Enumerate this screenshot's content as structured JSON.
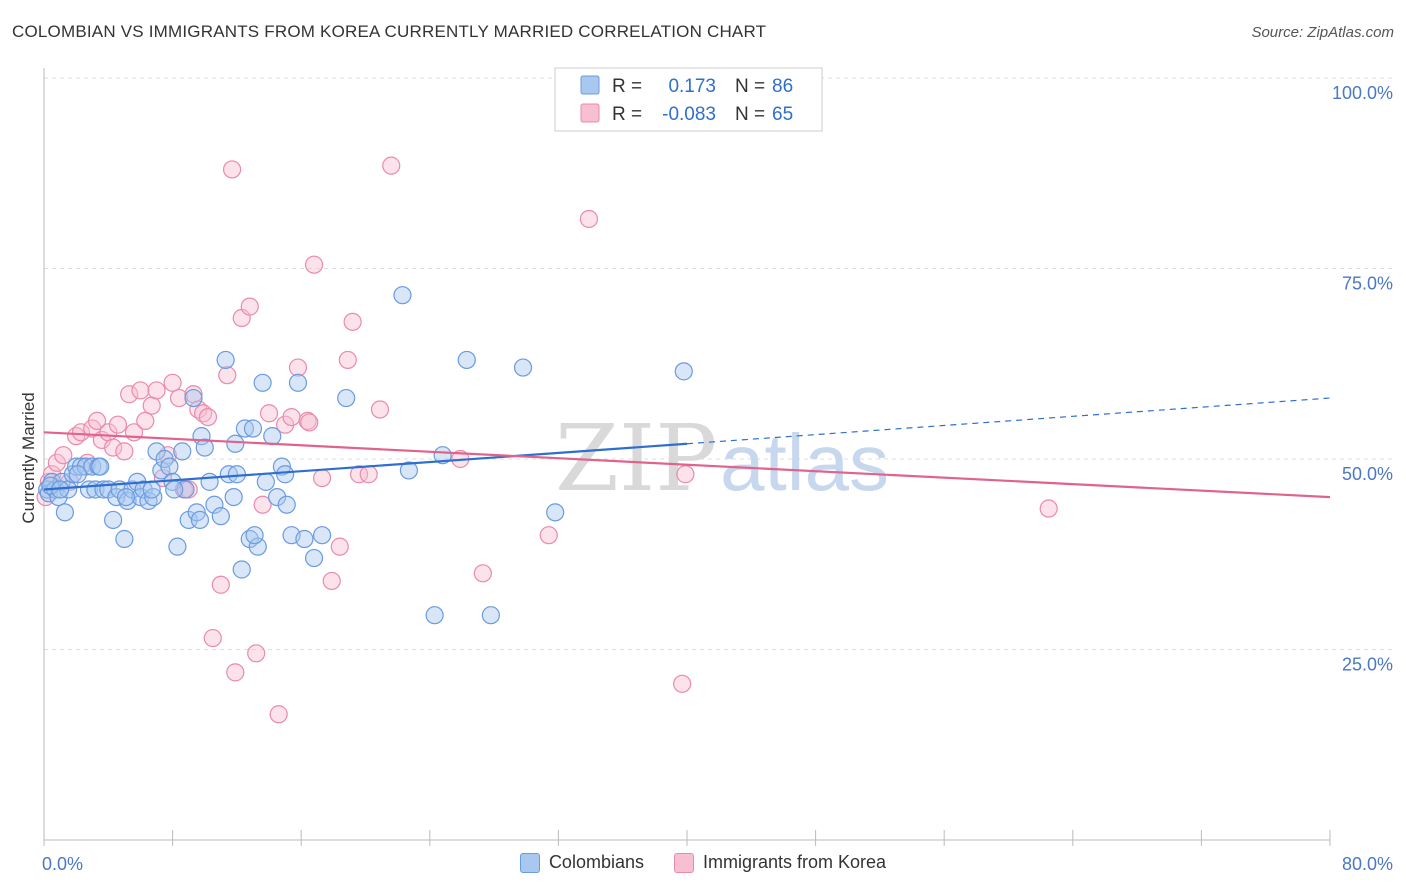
{
  "title": "COLOMBIAN VS IMMIGRANTS FROM KOREA CURRENTLY MARRIED CORRELATION CHART",
  "source": "Source: ZipAtlas.com",
  "watermark": {
    "zip": "ZIP",
    "atlas": "atlas"
  },
  "colors": {
    "blue_fill": "#a9c8f0",
    "blue_stroke": "#6a9be0",
    "blue_line": "#2e6fce",
    "pink_fill": "#f7bfd2",
    "pink_stroke": "#ea8aac",
    "pink_line": "#e0638c",
    "axis_label": "#4a78c4",
    "grid": "#dddddd"
  },
  "legend_box": {
    "rows": [
      {
        "r_label": "R =",
        "r_value": "0.173",
        "n_label": "N =",
        "n_value": "86",
        "series": "blue"
      },
      {
        "r_label": "R =",
        "r_value": "-0.083",
        "n_label": "N =",
        "n_value": "65",
        "series": "pink"
      }
    ]
  },
  "legend_bottom": [
    {
      "label": "Colombians",
      "series": "blue"
    },
    {
      "label": "Immigrants from Korea",
      "series": "pink"
    }
  ],
  "chart_data": {
    "type": "scatter",
    "title": "COLOMBIAN VS IMMIGRANTS FROM KOREA CURRENTLY MARRIED CORRELATION CHART",
    "xlabel": "",
    "ylabel": "Currently Married",
    "xlim": [
      0,
      80
    ],
    "ylim": [
      0,
      100
    ],
    "x_tick_labels": [
      "0.0%",
      "80.0%"
    ],
    "y_ticks": [
      25,
      50,
      75,
      100
    ],
    "y_tick_labels": [
      "25.0%",
      "50.0%",
      "75.0%",
      "100.0%"
    ],
    "grid": "horizontal dashed",
    "legend": "top-center",
    "series": [
      {
        "name": "Colombians",
        "color": "blue",
        "trend": {
          "x0": 0,
          "y0": 46,
          "x1": 40,
          "y1": 52,
          "dashed_to_x": 80,
          "dashed_to_y": 58
        },
        "points": [
          [
            0.2,
            46
          ],
          [
            0.3,
            45.5
          ],
          [
            0.5,
            47
          ],
          [
            0.7,
            46
          ],
          [
            0.9,
            45
          ],
          [
            1.1,
            47
          ],
          [
            1.3,
            43
          ],
          [
            1.5,
            46
          ],
          [
            1.8,
            48
          ],
          [
            2.0,
            49
          ],
          [
            2.3,
            49
          ],
          [
            2.6,
            49
          ],
          [
            2.8,
            46
          ],
          [
            3.0,
            49
          ],
          [
            3.2,
            46
          ],
          [
            3.4,
            49
          ],
          [
            3.7,
            46
          ],
          [
            4.0,
            46
          ],
          [
            4.3,
            42
          ],
          [
            4.5,
            45
          ],
          [
            4.7,
            46
          ],
          [
            5.0,
            39.5
          ],
          [
            5.2,
            44.5
          ],
          [
            5.5,
            46
          ],
          [
            5.8,
            47
          ],
          [
            6.0,
            45
          ],
          [
            6.2,
            46
          ],
          [
            6.5,
            44.5
          ],
          [
            6.8,
            45
          ],
          [
            7.0,
            51
          ],
          [
            7.3,
            48.5
          ],
          [
            7.5,
            50
          ],
          [
            7.8,
            49
          ],
          [
            8.0,
            47
          ],
          [
            8.3,
            38.5
          ],
          [
            8.6,
            51
          ],
          [
            8.8,
            46
          ],
          [
            9.0,
            42
          ],
          [
            9.3,
            58
          ],
          [
            9.5,
            43
          ],
          [
            9.8,
            53
          ],
          [
            10.0,
            51.5
          ],
          [
            10.3,
            47
          ],
          [
            10.6,
            44
          ],
          [
            11.0,
            42.5
          ],
          [
            11.3,
            63
          ],
          [
            11.5,
            48
          ],
          [
            11.8,
            45
          ],
          [
            12.0,
            48
          ],
          [
            12.3,
            35.5
          ],
          [
            12.5,
            54
          ],
          [
            12.8,
            39.5
          ],
          [
            13.0,
            54
          ],
          [
            13.3,
            38.5
          ],
          [
            13.6,
            60
          ],
          [
            13.8,
            47
          ],
          [
            14.2,
            53
          ],
          [
            14.5,
            45
          ],
          [
            14.8,
            49
          ],
          [
            15.1,
            44
          ],
          [
            15.4,
            40
          ],
          [
            15.8,
            60
          ],
          [
            16.2,
            39.5
          ],
          [
            16.8,
            37
          ],
          [
            17.3,
            40
          ],
          [
            18.8,
            58
          ],
          [
            22.3,
            71.5
          ],
          [
            22.7,
            48.5
          ],
          [
            24.3,
            29.5
          ],
          [
            24.8,
            50.5
          ],
          [
            26.3,
            63
          ],
          [
            27.8,
            29.5
          ],
          [
            29.8,
            62
          ],
          [
            31.8,
            43
          ],
          [
            39.8,
            61.5
          ],
          [
            0.4,
            46.5
          ],
          [
            1.0,
            46
          ],
          [
            2.1,
            48
          ],
          [
            3.5,
            49
          ],
          [
            5.1,
            45
          ],
          [
            6.7,
            46
          ],
          [
            8.1,
            46
          ],
          [
            9.7,
            42
          ],
          [
            11.9,
            52
          ],
          [
            13.1,
            40
          ],
          [
            15.0,
            48
          ]
        ]
      },
      {
        "name": "Immigrants from Korea",
        "color": "pink",
        "trend": {
          "x0": 0,
          "y0": 53.5,
          "x1": 80,
          "y1": 45
        },
        "points": [
          [
            0.1,
            45
          ],
          [
            0.3,
            47
          ],
          [
            0.5,
            48
          ],
          [
            0.8,
            49.5
          ],
          [
            1.2,
            50.5
          ],
          [
            1.6,
            47
          ],
          [
            2.0,
            53
          ],
          [
            2.3,
            53.5
          ],
          [
            2.7,
            49.5
          ],
          [
            3.0,
            54
          ],
          [
            3.3,
            55
          ],
          [
            3.6,
            52.5
          ],
          [
            4.0,
            53.5
          ],
          [
            4.3,
            51.5
          ],
          [
            4.6,
            54.5
          ],
          [
            5.0,
            51
          ],
          [
            5.3,
            58.5
          ],
          [
            5.6,
            53.5
          ],
          [
            6.0,
            59
          ],
          [
            6.3,
            55
          ],
          [
            6.7,
            57
          ],
          [
            7.0,
            59
          ],
          [
            7.4,
            47.5
          ],
          [
            7.7,
            50.5
          ],
          [
            8.0,
            60
          ],
          [
            8.4,
            58
          ],
          [
            8.7,
            46
          ],
          [
            9.0,
            46
          ],
          [
            9.3,
            58.5
          ],
          [
            9.6,
            56.5
          ],
          [
            9.9,
            56
          ],
          [
            10.2,
            55.5
          ],
          [
            10.5,
            26.5
          ],
          [
            11.0,
            33.5
          ],
          [
            11.4,
            61
          ],
          [
            11.7,
            88
          ],
          [
            11.9,
            22
          ],
          [
            12.3,
            68.5
          ],
          [
            12.8,
            70
          ],
          [
            13.2,
            24.5
          ],
          [
            13.6,
            44
          ],
          [
            14.0,
            56
          ],
          [
            14.6,
            16.5
          ],
          [
            15.0,
            54.5
          ],
          [
            15.4,
            55.5
          ],
          [
            15.8,
            62
          ],
          [
            16.4,
            55
          ],
          [
            16.8,
            75.5
          ],
          [
            17.3,
            47.5
          ],
          [
            17.9,
            34
          ],
          [
            18.4,
            38.5
          ],
          [
            18.9,
            63
          ],
          [
            19.2,
            68
          ],
          [
            19.6,
            48
          ],
          [
            20.2,
            48
          ],
          [
            20.9,
            56.5
          ],
          [
            21.6,
            88.5
          ],
          [
            25.9,
            50
          ],
          [
            27.3,
            35
          ],
          [
            31.4,
            40
          ],
          [
            33.9,
            81.5
          ],
          [
            39.7,
            20.5
          ],
          [
            39.9,
            48
          ],
          [
            62.5,
            43.5
          ],
          [
            16.5,
            54.8
          ]
        ]
      }
    ]
  }
}
